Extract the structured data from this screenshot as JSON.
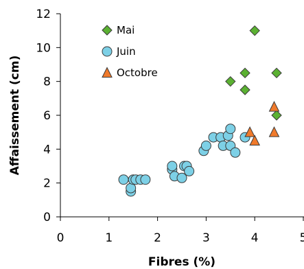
{
  "chart_data": {
    "type": "scatter",
    "xlabel": "Fibres (%)",
    "ylabel": "Affaissement (cm)",
    "xlim": [
      0,
      5
    ],
    "ylim": [
      0,
      12
    ],
    "x_ticks": [
      "0",
      "1",
      "2",
      "3",
      "4",
      "5"
    ],
    "y_ticks": [
      "0",
      "2",
      "4",
      "6",
      "8",
      "10",
      "12"
    ],
    "grid": false,
    "legend_position": "top-left",
    "series": [
      {
        "name": "Mai",
        "marker": "diamond",
        "color": "#5BB132",
        "points": [
          [
            3.5,
            8.0
          ],
          [
            3.8,
            8.5
          ],
          [
            3.8,
            7.5
          ],
          [
            4.0,
            11.0
          ],
          [
            4.45,
            8.5
          ],
          [
            4.45,
            6.0
          ]
        ]
      },
      {
        "name": "Juin",
        "marker": "circle",
        "color": "#7DD0E6",
        "points": [
          [
            1.3,
            2.2
          ],
          [
            1.45,
            1.5
          ],
          [
            1.45,
            1.7
          ],
          [
            1.5,
            2.2
          ],
          [
            1.55,
            2.2
          ],
          [
            1.65,
            2.2
          ],
          [
            1.75,
            2.2
          ],
          [
            2.3,
            2.8
          ],
          [
            2.3,
            3.0
          ],
          [
            2.35,
            2.4
          ],
          [
            2.5,
            2.3
          ],
          [
            2.55,
            3.0
          ],
          [
            2.6,
            3.0
          ],
          [
            2.65,
            2.7
          ],
          [
            2.95,
            3.9
          ],
          [
            3.0,
            4.2
          ],
          [
            3.15,
            4.7
          ],
          [
            3.3,
            4.7
          ],
          [
            3.35,
            4.2
          ],
          [
            3.45,
            4.8
          ],
          [
            3.5,
            5.2
          ],
          [
            3.5,
            4.2
          ],
          [
            3.6,
            3.8
          ],
          [
            3.8,
            4.7
          ]
        ]
      },
      {
        "name": "Octobre",
        "marker": "triangle",
        "color": "#F07A2B",
        "points": [
          [
            3.9,
            5.0
          ],
          [
            4.0,
            4.5
          ],
          [
            4.4,
            6.5
          ],
          [
            4.4,
            5.0
          ]
        ]
      }
    ]
  }
}
